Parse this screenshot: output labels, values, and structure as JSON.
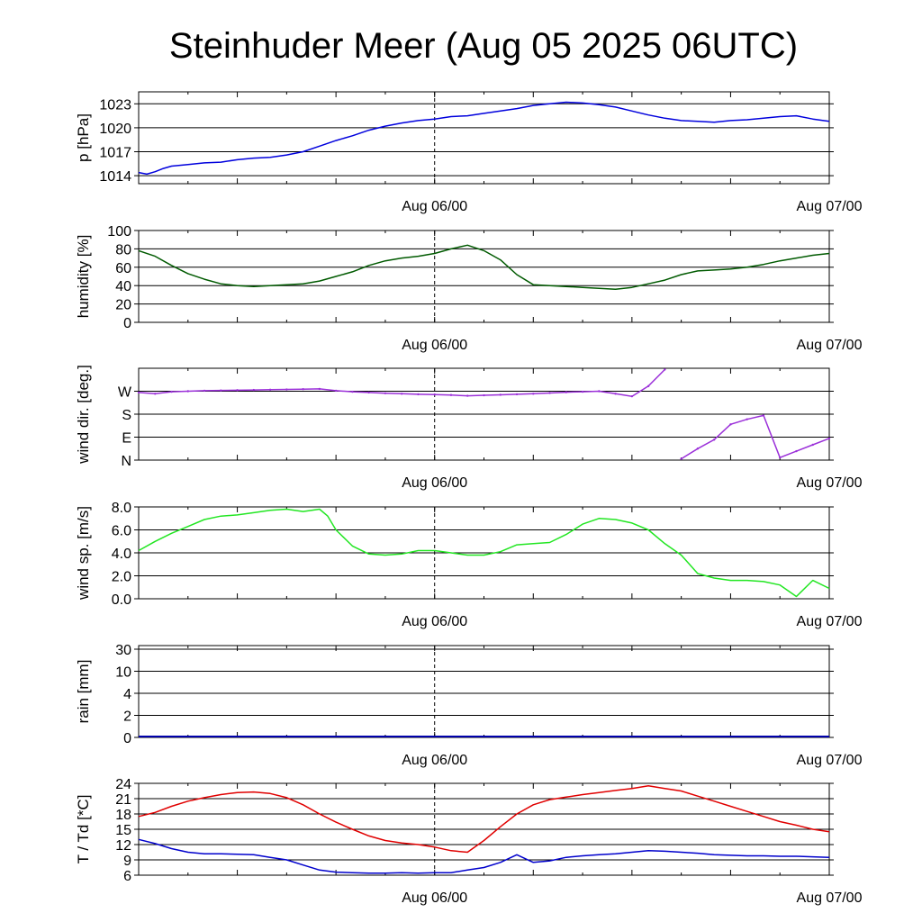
{
  "title": "Steinhuder Meer (Aug 05 2025 06UTC)",
  "x_range": [
    "Aug 05 06UTC",
    "Aug 07 00UTC"
  ],
  "x_tick_labels": [
    "Aug 06/00",
    "Aug 07/00"
  ],
  "colors": {
    "pressure": "#0000dd",
    "humidity": "#005a00",
    "wind_dir": "#9b30d9",
    "wind_speed": "#22e622",
    "rain": "#0000aa",
    "temperature": "#e00000",
    "dewpoint": "#0000cc"
  },
  "chart_data": [
    {
      "type": "line",
      "name": "pressure",
      "ylabel": "p [hPa]",
      "ylim": [
        1013,
        1024.5
      ],
      "gridlines": [
        1014,
        1017,
        1020,
        1023
      ],
      "ytick_labels": [
        "1014",
        "1017",
        "1020",
        "1023"
      ],
      "x_hours": [
        0,
        0.5,
        1,
        1.5,
        2,
        3,
        4,
        5,
        6,
        7,
        8,
        9,
        10,
        11,
        12,
        13,
        14,
        15,
        16,
        17,
        18,
        19,
        20,
        21,
        22,
        23,
        24,
        25,
        26,
        27,
        28,
        29,
        30,
        31,
        32,
        33,
        34,
        35,
        36,
        37,
        38,
        39,
        40,
        41,
        42
      ],
      "values": [
        1014.4,
        1014.2,
        1014.5,
        1014.9,
        1015.2,
        1015.4,
        1015.6,
        1015.7,
        1016.0,
        1016.2,
        1016.3,
        1016.6,
        1017.0,
        1017.7,
        1018.4,
        1019.0,
        1019.7,
        1020.2,
        1020.6,
        1020.9,
        1021.1,
        1021.4,
        1021.5,
        1021.8,
        1022.1,
        1022.4,
        1022.8,
        1023.0,
        1023.2,
        1023.1,
        1022.9,
        1022.6,
        1022.1,
        1021.6,
        1021.2,
        1020.9,
        1020.8,
        1020.7,
        1020.9,
        1021.0,
        1021.2,
        1021.4,
        1021.5,
        1021.1,
        1020.8
      ]
    },
    {
      "type": "line",
      "name": "humidity",
      "ylabel": "humidity [%]",
      "ylim": [
        0,
        100
      ],
      "gridlines": [
        0,
        20,
        40,
        60,
        80,
        100
      ],
      "ytick_labels": [
        "0",
        "20",
        "40",
        "60",
        "80",
        "100"
      ],
      "x_hours": [
        0,
        1,
        2,
        3,
        4,
        5,
        6,
        7,
        8,
        9,
        10,
        11,
        12,
        13,
        14,
        15,
        16,
        17,
        18,
        19,
        20,
        21,
        22,
        23,
        24,
        25,
        26,
        27,
        28,
        29,
        30,
        31,
        32,
        33,
        34,
        35,
        36,
        37,
        38,
        39,
        40,
        41,
        42
      ],
      "values": [
        78,
        72,
        62,
        53,
        47,
        42,
        40,
        39,
        40,
        41,
        42,
        45,
        50,
        55,
        62,
        67,
        70,
        72,
        75,
        80,
        84,
        78,
        68,
        52,
        41,
        40,
        39,
        38,
        37,
        36,
        38,
        42,
        46,
        52,
        56,
        57,
        58,
        60,
        63,
        67,
        70,
        73,
        75
      ]
    },
    {
      "type": "scatter",
      "name": "wind direction",
      "ylabel": "wind dir. [deg.]",
      "ylim": [
        0,
        360
      ],
      "gridlines": [
        0,
        90,
        180,
        270
      ],
      "ytick_labels": [
        "N",
        "E",
        "S",
        "W"
      ],
      "x_hours": [
        0,
        1,
        2,
        3,
        4,
        5,
        6,
        7,
        8,
        9,
        10,
        11,
        12,
        13,
        14,
        15,
        16,
        17,
        18,
        19,
        20,
        21,
        22,
        23,
        24,
        25,
        26,
        27,
        28,
        29,
        30,
        31,
        32,
        33,
        34,
        35,
        36,
        37,
        38,
        39,
        40,
        41,
        42
      ],
      "values": [
        265,
        260,
        268,
        270,
        272,
        273,
        274,
        275,
        276,
        277,
        278,
        279,
        272,
        268,
        265,
        262,
        260,
        258,
        257,
        255,
        252,
        254,
        256,
        258,
        260,
        263,
        266,
        268,
        270,
        260,
        250,
        290,
        355,
        5,
        45,
        80,
        140,
        160,
        175,
        10,
        35,
        60,
        85
      ]
    },
    {
      "type": "line",
      "name": "wind speed",
      "ylabel": "wind sp. [m/s]",
      "ylim": [
        0,
        8
      ],
      "gridlines": [
        0,
        2,
        4,
        6,
        8
      ],
      "ytick_labels": [
        "0.0",
        "2.0",
        "4.0",
        "6.0",
        "8.0"
      ],
      "x_hours": [
        0,
        1,
        2,
        3,
        4,
        5,
        6,
        7,
        8,
        9,
        10,
        11,
        11.5,
        12,
        13,
        14,
        15,
        16,
        17,
        18,
        19,
        20,
        21,
        22,
        23,
        24,
        25,
        26,
        27,
        28,
        29,
        30,
        31,
        32,
        33,
        34,
        35,
        36,
        37,
        38,
        39,
        40,
        41,
        42
      ],
      "values": [
        4.2,
        5.0,
        5.7,
        6.3,
        6.9,
        7.2,
        7.3,
        7.5,
        7.7,
        7.8,
        7.6,
        7.8,
        7.2,
        6.0,
        4.6,
        3.9,
        3.8,
        3.9,
        4.2,
        4.2,
        4.0,
        3.8,
        3.8,
        4.1,
        4.7,
        4.8,
        4.9,
        5.6,
        6.5,
        7.0,
        6.9,
        6.6,
        6.0,
        4.8,
        3.8,
        2.2,
        1.8,
        1.6,
        1.6,
        1.5,
        1.2,
        0.2,
        1.6,
        0.9
      ]
    },
    {
      "type": "bar",
      "name": "rain",
      "ylabel": "rain [mm]",
      "ylim": [
        0,
        30
      ],
      "gridlines": [
        0,
        2,
        4,
        10,
        30
      ],
      "ytick_labels": [
        "0",
        "2",
        "4",
        "10",
        "30"
      ],
      "x_hours": [
        0,
        6,
        12,
        18,
        24,
        30,
        36,
        42
      ],
      "values": [
        0,
        0,
        0,
        0,
        0,
        0,
        0,
        0
      ]
    },
    {
      "type": "line",
      "name": "temperature / dewpoint",
      "ylabel": "T / Td [*C]",
      "ylim": [
        6,
        24
      ],
      "gridlines": [
        6,
        9,
        12,
        15,
        18,
        21,
        24
      ],
      "ytick_labels": [
        "6",
        "9",
        "12",
        "15",
        "18",
        "21",
        "24"
      ],
      "x_hours": [
        0,
        1,
        2,
        3,
        4,
        5,
        6,
        7,
        8,
        9,
        10,
        11,
        12,
        13,
        14,
        15,
        16,
        17,
        18,
        19,
        20,
        21,
        22,
        23,
        24,
        25,
        26,
        27,
        28,
        29,
        30,
        31,
        32,
        33,
        34,
        35,
        36,
        37,
        38,
        39,
        40,
        41,
        42
      ],
      "series": [
        {
          "name": "temperature",
          "values": [
            17.5,
            18.3,
            19.5,
            20.5,
            21.2,
            21.8,
            22.2,
            22.3,
            22.0,
            21.2,
            19.8,
            18.0,
            16.4,
            15.0,
            13.7,
            12.8,
            12.3,
            12.0,
            11.5,
            10.8,
            10.5,
            12.8,
            15.5,
            18.0,
            19.8,
            20.8,
            21.3,
            21.8,
            22.2,
            22.6,
            23.0,
            23.5,
            23.0,
            22.5,
            21.5,
            20.5,
            19.5,
            18.5,
            17.5,
            16.5,
            15.8,
            15.0,
            14.5
          ]
        },
        {
          "name": "dewpoint",
          "values": [
            13.0,
            12.2,
            11.2,
            10.5,
            10.2,
            10.2,
            10.1,
            10.0,
            9.5,
            9.0,
            8.0,
            7.0,
            6.6,
            6.5,
            6.4,
            6.4,
            6.5,
            6.4,
            6.5,
            6.5,
            7.0,
            7.5,
            8.5,
            10.0,
            8.5,
            8.8,
            9.5,
            9.8,
            10.0,
            10.2,
            10.5,
            10.8,
            10.7,
            10.5,
            10.3,
            10.0,
            9.9,
            9.8,
            9.8,
            9.7,
            9.7,
            9.6,
            9.5
          ]
        }
      ]
    }
  ]
}
